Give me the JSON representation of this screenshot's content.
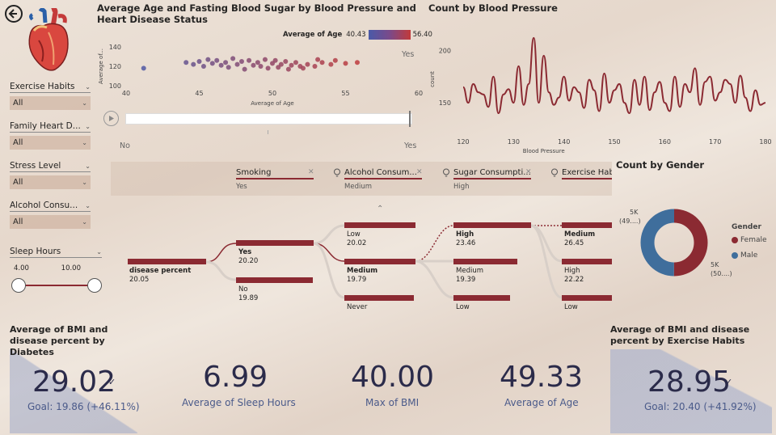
{
  "back_icon": "arrow-left-circle-icon",
  "heart_icon": "anatomical-heart-icon",
  "slicers": [
    {
      "label": "Exercise Habits",
      "value": "All"
    },
    {
      "label": "Family Heart D...",
      "value": "All"
    },
    {
      "label": "Stress Level",
      "value": "All"
    },
    {
      "label": "Alcohol Consu...",
      "value": "All"
    }
  ],
  "sleep": {
    "label": "Sleep Hours",
    "min": "4.00",
    "max": "10.00"
  },
  "scatter": {
    "title": "Average Age and Fasting Blood Sugar by Blood Pressure and Heart Disease Status",
    "legend_label": "Average of Age",
    "legend_min": "40.43",
    "legend_max": "56.40",
    "ylabel": "Average of...",
    "xlabel": "Average of Age",
    "series_label": "Yes",
    "yticks": [
      "140",
      "120",
      "100"
    ],
    "xticks": [
      "40",
      "45",
      "50",
      "55",
      "60"
    ],
    "play_left": "No",
    "play_right": "Yes"
  },
  "line": {
    "title": "Count by Blood Pressure",
    "ylabel": "count",
    "xlabel": "Blood Pressure",
    "yticks": [
      "200",
      "150"
    ],
    "xticks": [
      "120",
      "130",
      "140",
      "150",
      "160",
      "170",
      "180"
    ]
  },
  "tree": {
    "headers": [
      {
        "label": "Smoking",
        "sub": "Yes",
        "icon": ""
      },
      {
        "label": "Alcohol Consum...",
        "sub": "Medium",
        "icon": "lightbulb-icon"
      },
      {
        "label": "Sugar Consumpti...",
        "sub": "High",
        "icon": "lightbulb-icon"
      },
      {
        "label": "Exercise Hab",
        "sub": "",
        "icon": "lightbulb-icon"
      }
    ],
    "root": {
      "label": "disease percent",
      "value": "20.05"
    },
    "smoking": [
      {
        "label": "Yes",
        "value": "20.20"
      },
      {
        "label": "No",
        "value": "19.89"
      }
    ],
    "alcohol": [
      {
        "label": "Low",
        "value": "20.02"
      },
      {
        "label": "Medium",
        "value": "19.79"
      },
      {
        "label": "Never",
        "value": ""
      }
    ],
    "sugar": [
      {
        "label": "High",
        "value": "23.46"
      },
      {
        "label": "Medium",
        "value": "19.39"
      },
      {
        "label": "Low",
        "value": ""
      }
    ],
    "exercise": [
      {
        "label": "Medium",
        "value": "26.45"
      },
      {
        "label": "High",
        "value": "22.22"
      },
      {
        "label": "Low",
        "value": ""
      }
    ]
  },
  "donut": {
    "title": "Count by Gender",
    "legend_title": "Gender",
    "female_label": "Female",
    "male_label": "Male",
    "label_left_1": "5K",
    "label_left_2": "(49....)",
    "label_right_1": "5K",
    "label_right_2": "(50....)",
    "female_color": "#8b2a32",
    "male_color": "#3f6e9c"
  },
  "kpis": {
    "diabetes_title": "Average of BMI and disease percent by Diabetes",
    "diabetes_value": "29.02",
    "diabetes_goal": "Goal: 19.86 (+46.11%)",
    "sleep_value": "6.99",
    "sleep_caption": "Average of Sleep Hours",
    "bmi_value": "40.00",
    "bmi_caption": "Max of BMI",
    "age_value": "49.33",
    "age_caption": "Average of Age",
    "exercise_title": "Average of BMI and disease percent by Exercise Habits",
    "exercise_value": "28.95",
    "exercise_goal": "Goal: 20.40 (+41.92%)"
  },
  "chart_data": [
    {
      "type": "scatter",
      "title": "Average Age and Fasting Blood Sugar by Blood Pressure and Heart Disease Status",
      "xlabel": "Average of Age",
      "ylabel": "Average of...",
      "xlim": [
        40,
        60
      ],
      "ylim": [
        100,
        140
      ],
      "points": [
        [
          41.2,
          118
        ],
        [
          44.1,
          124
        ],
        [
          44.6,
          122
        ],
        [
          45.0,
          125
        ],
        [
          45.3,
          120
        ],
        [
          45.6,
          127
        ],
        [
          45.9,
          123
        ],
        [
          46.2,
          126
        ],
        [
          46.5,
          121
        ],
        [
          46.8,
          124
        ],
        [
          47.0,
          119
        ],
        [
          47.3,
          128
        ],
        [
          47.6,
          122
        ],
        [
          47.9,
          125
        ],
        [
          48.1,
          117
        ],
        [
          48.4,
          126
        ],
        [
          48.7,
          121
        ],
        [
          49.0,
          124
        ],
        [
          49.2,
          120
        ],
        [
          49.5,
          127
        ],
        [
          49.7,
          118
        ],
        [
          50.0,
          123
        ],
        [
          50.2,
          126
        ],
        [
          50.4,
          119
        ],
        [
          50.6,
          122
        ],
        [
          50.9,
          125
        ],
        [
          51.1,
          117
        ],
        [
          51.3,
          121
        ],
        [
          51.6,
          124
        ],
        [
          51.9,
          120
        ],
        [
          52.1,
          118
        ],
        [
          52.4,
          122
        ],
        [
          52.9,
          120
        ],
        [
          53.1,
          127
        ],
        [
          53.4,
          124
        ],
        [
          54.0,
          122
        ],
        [
          54.3,
          126
        ],
        [
          55.0,
          123
        ],
        [
          55.8,
          124
        ]
      ]
    },
    {
      "type": "line",
      "title": "Count by Blood Pressure",
      "xlabel": "Blood Pressure",
      "ylabel": "count",
      "xlim": [
        120,
        180
      ],
      "ylim": [
        130,
        215
      ],
      "x": [
        120,
        121,
        122,
        123,
        124,
        125,
        126,
        127,
        128,
        129,
        130,
        131,
        132,
        133,
        134,
        135,
        136,
        137,
        138,
        139,
        140,
        141,
        142,
        143,
        144,
        145,
        146,
        147,
        148,
        149,
        150,
        151,
        152,
        153,
        154,
        155,
        156,
        157,
        158,
        159,
        160,
        161,
        162,
        163,
        164,
        165,
        166,
        167,
        168,
        169,
        170,
        171,
        172,
        173,
        174,
        175,
        176,
        177,
        178,
        179,
        180
      ],
      "y": [
        165,
        150,
        168,
        160,
        158,
        146,
        175,
        140,
        158,
        163,
        150,
        185,
        148,
        168,
        212,
        150,
        195,
        160,
        148,
        155,
        175,
        152,
        165,
        160,
        145,
        172,
        162,
        142,
        178,
        150,
        162,
        168,
        150,
        140,
        172,
        148,
        175,
        143,
        160,
        170,
        150,
        142,
        175,
        146,
        168,
        160,
        183,
        148,
        170,
        175,
        152,
        160,
        172,
        168,
        150,
        176,
        155,
        142,
        162,
        148,
        150
      ]
    },
    {
      "type": "pie",
      "title": "Count by Gender",
      "labels": [
        "Female",
        "Male"
      ],
      "values": [
        50.1,
        49.9
      ]
    }
  ]
}
